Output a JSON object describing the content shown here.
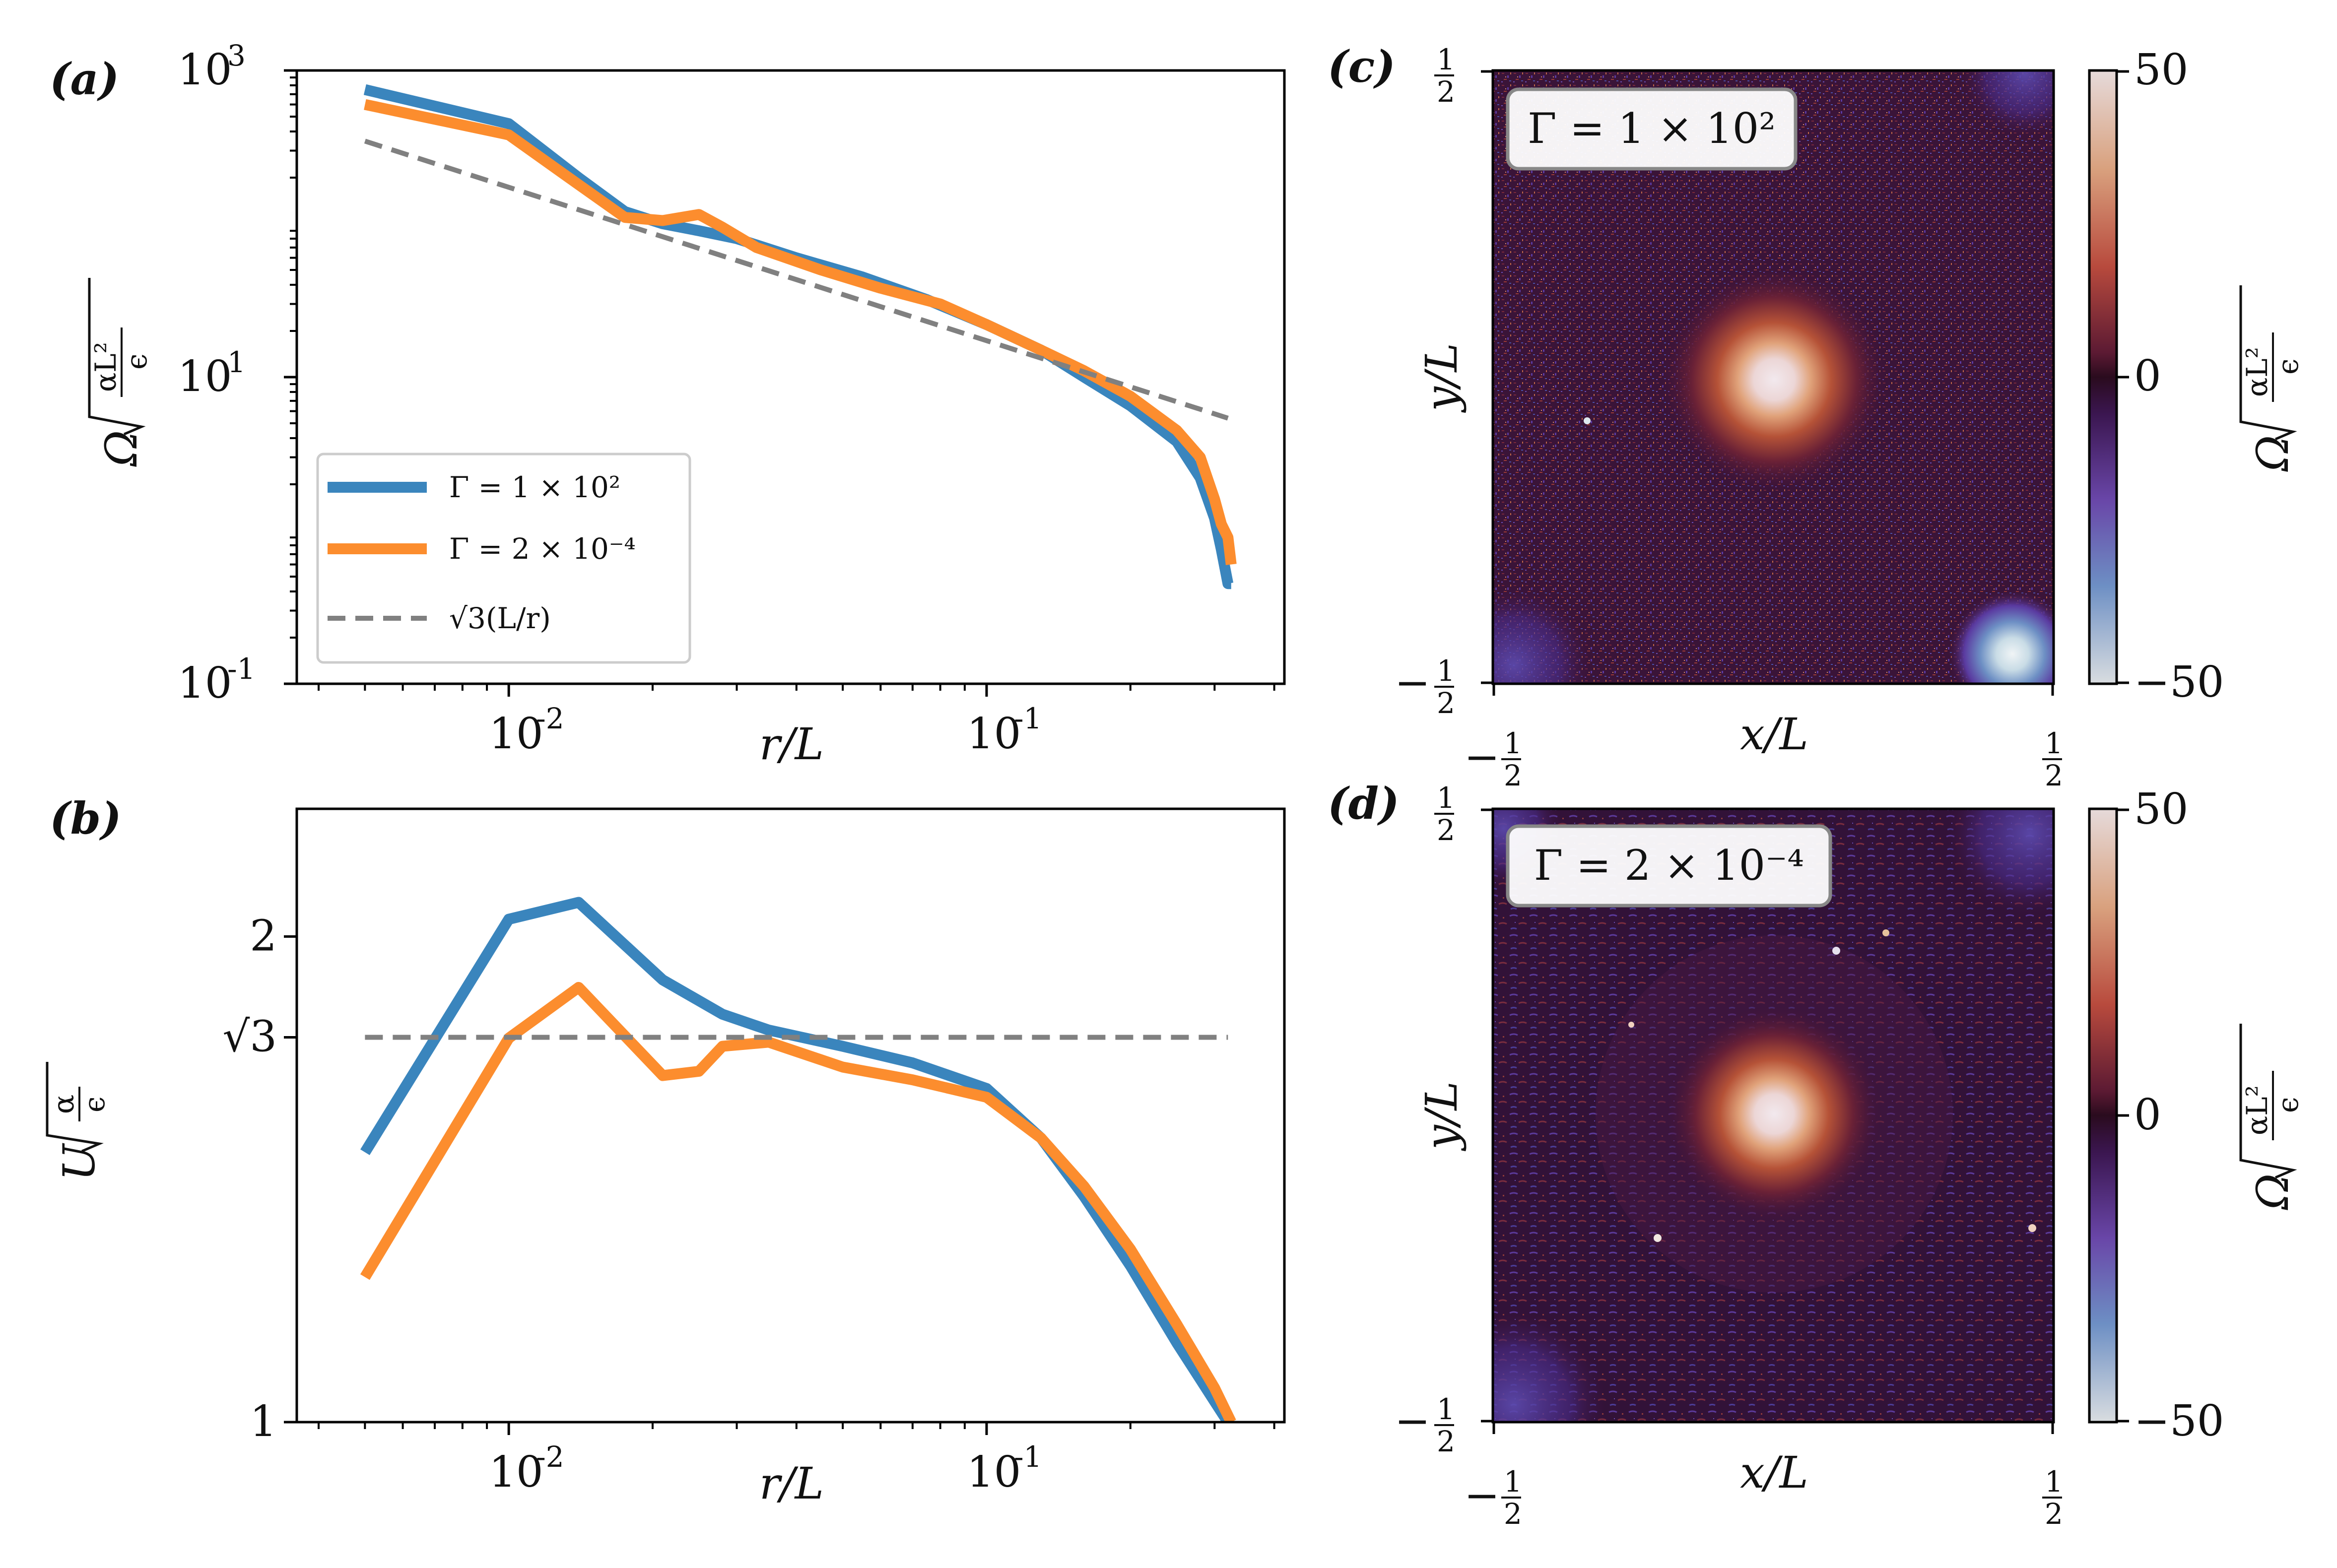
{
  "panels": {
    "a": "(a)",
    "b": "(b)",
    "c": "(c)",
    "d": "(d)"
  },
  "colors": {
    "series1": "#3a85bd",
    "series2": "#fc8d2e",
    "ref": "#808080"
  },
  "chart_data": [
    {
      "id": "a",
      "type": "line",
      "xscale": "log",
      "yscale": "log",
      "xlim": [
        0.0036,
        0.42
      ],
      "ylim": [
        0.1,
        1000
      ],
      "xlabel": "r/L",
      "ylabel": "Ω√(αL²/ϵ)",
      "xticks": [
        {
          "v": 0.01,
          "m": "10",
          "e": "-2"
        },
        {
          "v": 0.1,
          "m": "10",
          "e": "-1"
        }
      ],
      "yticks": [
        {
          "v": 0.1,
          "m": "10",
          "e": "-1"
        },
        {
          "v": 10,
          "m": "10",
          "e": "1"
        },
        {
          "v": 1000,
          "m": "10",
          "e": "3"
        }
      ],
      "legend_position": "lower-left",
      "series": [
        {
          "name": "Γ = 1 × 10²",
          "color": "#3a85bd",
          "dashed": false,
          "x": [
            0.005,
            0.01,
            0.014,
            0.0175,
            0.021,
            0.025,
            0.03,
            0.04,
            0.055,
            0.075,
            0.1,
            0.13,
            0.16,
            0.2,
            0.25,
            0.28,
            0.3,
            0.31,
            0.32,
            0.325
          ],
          "y": [
            750,
            450,
            200,
            120,
            100,
            90,
            80,
            60,
            45,
            32,
            22,
            15,
            10,
            6.5,
            3.8,
            2.2,
            1.2,
            0.75,
            0.45,
            0.45
          ]
        },
        {
          "name": "Γ = 2 × 10⁻⁴",
          "color": "#fc8d2e",
          "dashed": false,
          "x": [
            0.005,
            0.01,
            0.014,
            0.0175,
            0.021,
            0.025,
            0.028,
            0.033,
            0.045,
            0.06,
            0.08,
            0.1,
            0.13,
            0.16,
            0.2,
            0.25,
            0.28,
            0.3,
            0.31,
            0.32,
            0.325
          ],
          "y": [
            600,
            380,
            180,
            110,
            105,
            115,
            95,
            70,
            50,
            38,
            30,
            22,
            15,
            11,
            7.5,
            4.5,
            3.0,
            1.6,
            1.1,
            0.9,
            0.6
          ]
        },
        {
          "name": "√3(L/r)",
          "color": "#808080",
          "dashed": true,
          "x": [
            0.005,
            0.32
          ],
          "y": [
            346,
            5.4
          ]
        }
      ]
    },
    {
      "id": "b",
      "type": "line",
      "xscale": "log",
      "yscale": "log",
      "xlim": [
        0.0036,
        0.42
      ],
      "ylim": [
        1.0,
        2.4
      ],
      "xlabel": "U√(α/ϵ)",
      "xaxis_label": "r/L",
      "ylabel": "U√(α/ϵ)",
      "xticks": [
        {
          "v": 0.01,
          "m": "10",
          "e": "-2"
        },
        {
          "v": 0.1,
          "m": "10",
          "e": "-1"
        }
      ],
      "yticks": [
        {
          "v": 1,
          "m": "1"
        },
        {
          "v": 1.732,
          "m": "√3"
        },
        {
          "v": 2,
          "m": "2"
        }
      ],
      "series": [
        {
          "name": "Γ = 1 × 10²",
          "color": "#3a85bd",
          "dashed": false,
          "x": [
            0.005,
            0.01,
            0.014,
            0.021,
            0.028,
            0.035,
            0.05,
            0.07,
            0.1,
            0.13,
            0.16,
            0.2,
            0.25,
            0.3,
            0.32
          ],
          "y": [
            1.47,
            2.05,
            2.1,
            1.88,
            1.79,
            1.75,
            1.71,
            1.67,
            1.61,
            1.5,
            1.38,
            1.25,
            1.12,
            1.03,
            1.0
          ]
        },
        {
          "name": "Γ = 2 × 10⁻⁴",
          "color": "#fc8d2e",
          "dashed": false,
          "x": [
            0.005,
            0.01,
            0.014,
            0.021,
            0.025,
            0.028,
            0.035,
            0.05,
            0.07,
            0.1,
            0.13,
            0.16,
            0.2,
            0.25,
            0.3,
            0.325
          ],
          "y": [
            1.23,
            1.73,
            1.86,
            1.64,
            1.65,
            1.71,
            1.72,
            1.66,
            1.63,
            1.59,
            1.5,
            1.4,
            1.28,
            1.15,
            1.05,
            1.0
          ]
        },
        {
          "name": "√3",
          "color": "#808080",
          "dashed": true,
          "x": [
            0.005,
            0.32
          ],
          "y": [
            1.732,
            1.732
          ]
        }
      ]
    },
    {
      "id": "c",
      "type": "heatmap",
      "title": "Γ = 1 × 10²",
      "xlabel": "x/L",
      "ylabel": "y/L",
      "xlim": [
        -0.5,
        0.5
      ],
      "ylim": [
        -0.5,
        0.5
      ],
      "colorbar": {
        "label": "Ω√(αL²/ϵ)",
        "range": [
          -50,
          50
        ],
        "ticks": [
          "50",
          "0",
          "−50"
        ]
      }
    },
    {
      "id": "d",
      "type": "heatmap",
      "title": "Γ = 2 × 10⁻⁴",
      "xlabel": "x/L",
      "ylabel": "y/L",
      "xlim": [
        -0.5,
        0.5
      ],
      "ylim": [
        -0.5,
        0.5
      ],
      "colorbar": {
        "label": "Ω√(αL²/ϵ)",
        "range": [
          -50,
          50
        ],
        "ticks": [
          "50",
          "0",
          "−50"
        ]
      }
    }
  ],
  "legend": {
    "items": [
      {
        "label": "Γ = 1 × 10²",
        "color": "#3a85bd",
        "dashed": false
      },
      {
        "label": "Γ = 2 × 10⁻⁴",
        "color": "#fc8d2e",
        "dashed": false
      },
      {
        "label": "√3(L/r)",
        "color": "#808080",
        "dashed": true
      }
    ]
  },
  "axes_text": {
    "r_over_L": "r/L",
    "x_over_L": "x/L",
    "y_over_L": "y/L",
    "omega_symbol": "Ω",
    "u_symbol": "U",
    "alpha_L2": "αL²",
    "alpha": "α",
    "epsilon": "ϵ",
    "half_pos": "1",
    "half_den": "2",
    "minus": "−"
  },
  "maps": {
    "c_title": "Γ = 1 × 10²",
    "d_title": "Γ = 2 × 10⁻⁴",
    "cbar_top": "50",
    "cbar_mid": "0",
    "cbar_bot": "−50"
  }
}
